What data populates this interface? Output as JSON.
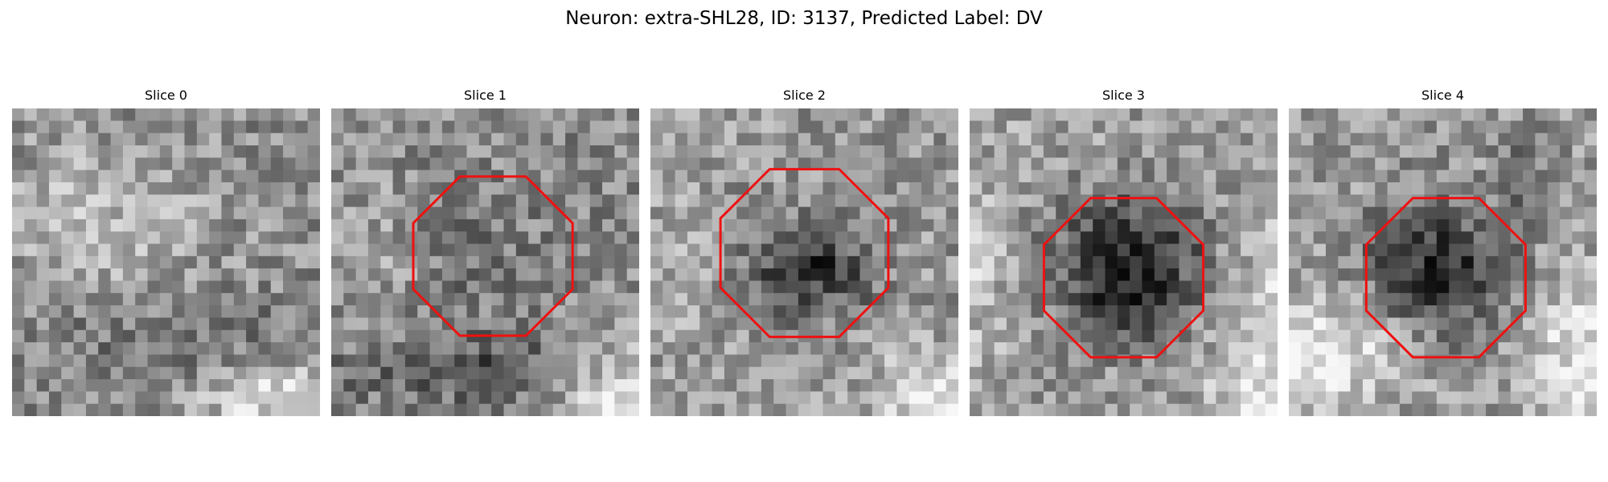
{
  "figure": {
    "title": "Neuron: extra-SHL28, ID: 3137, Predicted Label: DV"
  },
  "colors": {
    "roi_outline": "#ee1111",
    "colormap": "gray"
  },
  "slices": [
    {
      "title": "Slice 0",
      "has_roi": false,
      "description": "grayscale noisy patch, bright textured region at top-left, bright band lower-right"
    },
    {
      "title": "Slice 1",
      "has_roi": true,
      "description": "grayscale noisy patch with octagonal ROI outline; dark band along bottom, bright lower-right corner"
    },
    {
      "title": "Slice 2",
      "has_roi": true,
      "description": "grayscale patch with dark blob inside octagonal ROI outline; bright lower-right corner"
    },
    {
      "title": "Slice 3",
      "has_roi": true,
      "description": "grayscale patch with large dark blob centered in octagonal ROI outline; bright rim on right and bottom"
    },
    {
      "title": "Slice 4",
      "has_roi": true,
      "description": "grayscale patch with dark blob in octagonal ROI outline; bright lower-left and lower-right"
    }
  ]
}
